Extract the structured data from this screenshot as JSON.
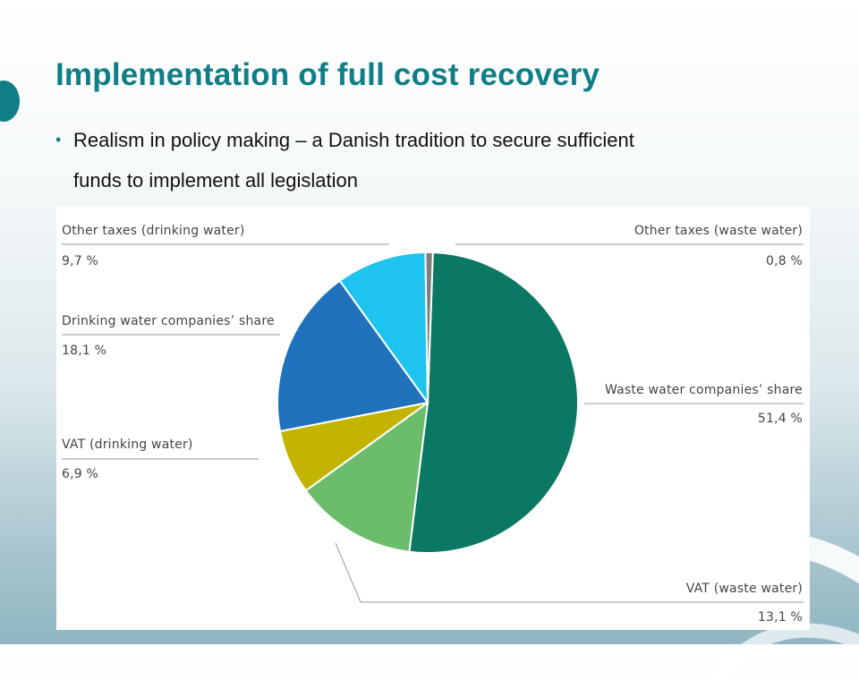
{
  "slide": {
    "title": "Implementation of full cost recovery",
    "bullet_line1": "Realism in policy making – a Danish tradition to secure sufficient",
    "bullet_line2": "funds to implement all legislation"
  },
  "colors": {
    "title": "#0f7e86",
    "accent": "#0f7e86"
  },
  "chart_data": {
    "type": "pie",
    "title": "",
    "start_angle_deg": 2,
    "direction": "clockwise",
    "slices": [
      {
        "label": "Waste water companies' share",
        "display_label": "Waste water companies’ share",
        "value": 51.4,
        "value_label": "51,4 %",
        "color": "#0a7862"
      },
      {
        "label": "VAT (waste water)",
        "display_label": "VAT (waste water)",
        "value": 13.1,
        "value_label": "13,1 %",
        "color": "#6bbd6c"
      },
      {
        "label": "VAT (drinking water)",
        "display_label": "VAT (drinking water)",
        "value": 6.9,
        "value_label": "6,9 %",
        "color": "#c2b400"
      },
      {
        "label": "Drinking water companies' share",
        "display_label": "Drinking water companies’ share",
        "value": 18.1,
        "value_label": "18,1 %",
        "color": "#1f72bb"
      },
      {
        "label": "Other taxes (drinking water)",
        "display_label": "Other taxes (drinking water)",
        "value": 9.7,
        "value_label": "9,7 %",
        "color": "#1ec3ef"
      },
      {
        "label": "Other taxes (waste water)",
        "display_label": "Other taxes (waste water)",
        "value": 0.8,
        "value_label": "0,8 %",
        "color": "#7e7e7e"
      }
    ]
  }
}
